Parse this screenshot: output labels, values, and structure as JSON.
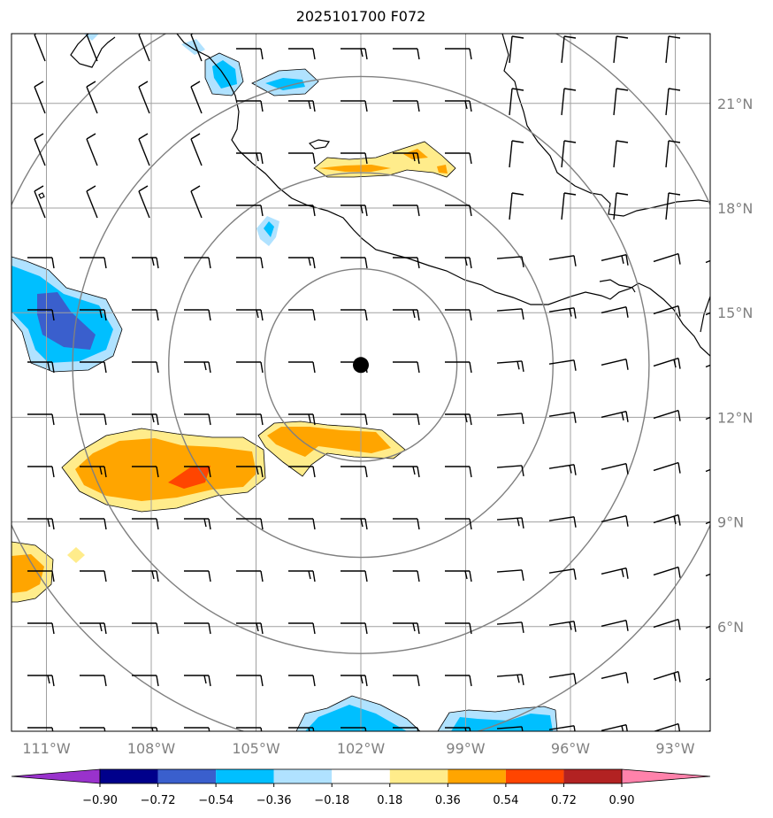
{
  "title": "2025101700 F072",
  "map": {
    "lon_range": [
      -112,
      -92
    ],
    "lat_range": [
      3,
      23
    ],
    "lon_ticks": [
      {
        "value": -111,
        "label": "111°W"
      },
      {
        "value": -108,
        "label": "108°W"
      },
      {
        "value": -105,
        "label": "105°W"
      },
      {
        "value": -102,
        "label": "102°W"
      },
      {
        "value": -99,
        "label": "99°W"
      },
      {
        "value": -96,
        "label": "96°W"
      },
      {
        "value": -93,
        "label": "93°W"
      }
    ],
    "lat_ticks": [
      {
        "value": 21,
        "label": "21°N"
      },
      {
        "value": 18,
        "label": "18°N"
      },
      {
        "value": 15,
        "label": "15°N"
      },
      {
        "value": 12,
        "label": "12°N"
      },
      {
        "value": 9,
        "label": "9°N"
      },
      {
        "value": 6,
        "label": "6°N"
      }
    ],
    "center": {
      "lon": -102,
      "lat": 13.5
    },
    "range_rings_deg": [
      2.75,
      5.5,
      8.25,
      11
    ],
    "grid_color": "#a0a0a0",
    "ring_color": "#808080"
  },
  "colorbar": {
    "colors": [
      "#9932cc",
      "#00008b",
      "#3a5fcd",
      "#00bfff",
      "#b0e2ff",
      "#ffffff",
      "#ffec8b",
      "#ffa500",
      "#ff4500",
      "#b22222",
      "#ff82ab"
    ],
    "tick_labels": [
      "−0.90",
      "−0.72",
      "−0.54",
      "−0.36",
      "−0.18",
      "0.18",
      "0.36",
      "0.54",
      "0.72",
      "0.90"
    ]
  }
}
